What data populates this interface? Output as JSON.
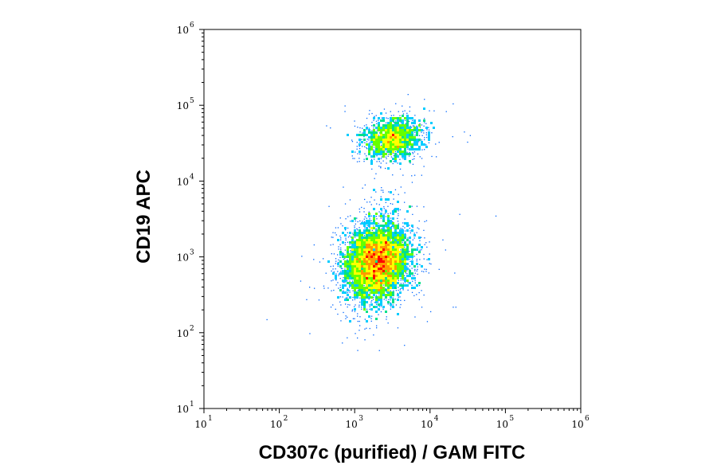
{
  "chart_data": {
    "type": "scatter",
    "style": "flow-cytometry-density-dot-plot",
    "xlabel": "CD307c (purified) / GAM FITC",
    "ylabel": "CD19 APC",
    "x_scale": "log",
    "y_scale": "log",
    "xlim": [
      10,
      1000000
    ],
    "ylim": [
      10,
      1000000
    ],
    "x_ticks": [
      {
        "base": "10",
        "exp": "1",
        "value": 10
      },
      {
        "base": "10",
        "exp": "2",
        "value": 100
      },
      {
        "base": "10",
        "exp": "3",
        "value": 1000
      },
      {
        "base": "10",
        "exp": "4",
        "value": 10000
      },
      {
        "base": "10",
        "exp": "5",
        "value": 100000
      },
      {
        "base": "10",
        "exp": "6",
        "value": 1000000
      }
    ],
    "y_ticks": [
      {
        "base": "10",
        "exp": "1",
        "value": 10
      },
      {
        "base": "10",
        "exp": "2",
        "value": 100
      },
      {
        "base": "10",
        "exp": "3",
        "value": 1000
      },
      {
        "base": "10",
        "exp": "4",
        "value": 10000
      },
      {
        "base": "10",
        "exp": "5",
        "value": 100000
      },
      {
        "base": "10",
        "exp": "6",
        "value": 1000000
      }
    ],
    "grid": false,
    "density_colors": [
      "#0000cc",
      "#0066ff",
      "#00ccff",
      "#00e08a",
      "#66ff00",
      "#ffff00",
      "#ff9900",
      "#ff0000"
    ],
    "populations": [
      {
        "center": [
          2000,
          850
        ],
        "spread_log_x": 0.22,
        "spread_log_y": 0.25,
        "events": 5200
      },
      {
        "center": [
          3200,
          36000
        ],
        "spread_log_x": 0.2,
        "spread_log_y": 0.14,
        "events": 1500
      },
      {
        "center": [
          2500,
          4000
        ],
        "spread_log_x": 0.15,
        "spread_log_y": 0.22,
        "events": 70
      }
    ]
  }
}
